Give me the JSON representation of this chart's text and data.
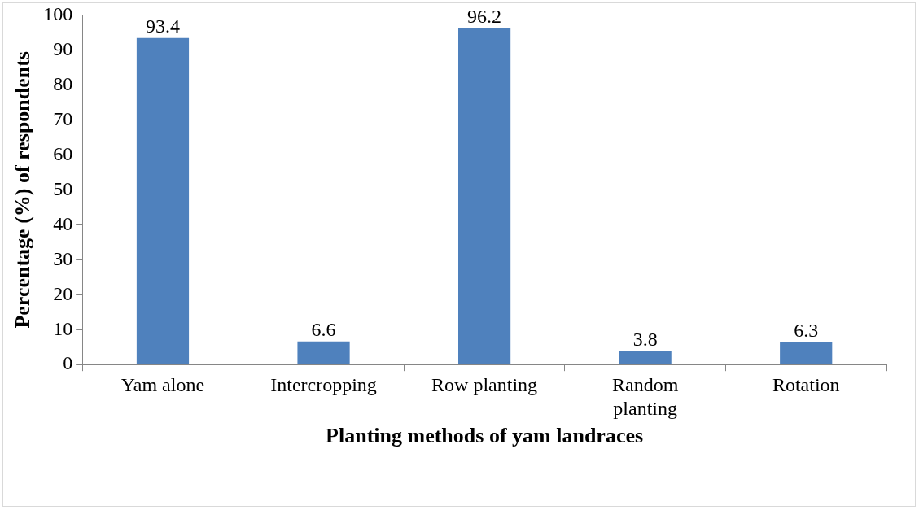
{
  "chart_data": {
    "type": "bar",
    "xlabel": "Planting methods of yam landraces",
    "ylabel": "Percentage (%) of respondents",
    "categories": [
      "Yam alone",
      "Intercropping",
      "Row planting",
      "Random planting",
      "Rotation"
    ],
    "values": [
      93.4,
      6.6,
      96.2,
      3.8,
      6.3
    ],
    "color": "#4f81bd",
    "ylim": [
      0,
      100
    ],
    "yticks": [
      0,
      10,
      20,
      30,
      40,
      50,
      60,
      70,
      80,
      90,
      100
    ],
    "data_labels": true
  }
}
